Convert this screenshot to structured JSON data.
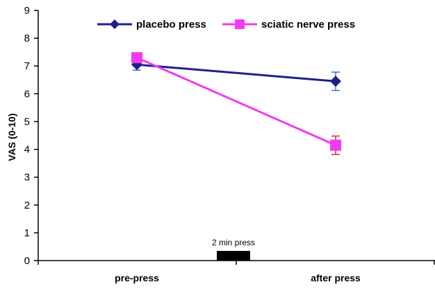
{
  "chart_data": {
    "type": "line",
    "title": "",
    "xlabel": "",
    "ylabel": "VAS (0-10)",
    "ylim": [
      0,
      9
    ],
    "yticks": [
      "0",
      "1",
      "2",
      "3",
      "4",
      "5",
      "6",
      "7",
      "8",
      "9"
    ],
    "categories": [
      "pre-press",
      "after press"
    ],
    "grid": false,
    "legend_position": "top",
    "series": [
      {
        "name": "placebo press",
        "color": "#1f1f8c",
        "marker": "diamond",
        "values": [
          7.05,
          6.45
        ],
        "errors": [
          0.2,
          0.33
        ],
        "error_color": "#3a6fcf"
      },
      {
        "name": "sciatic nerve press",
        "color": "#f03cf0",
        "marker": "square",
        "values": [
          7.3,
          4.15
        ],
        "errors": [
          0.15,
          0.33
        ],
        "error_color": "#d23020"
      }
    ],
    "annotation": {
      "text": "2 min press",
      "color": "#000000"
    }
  }
}
